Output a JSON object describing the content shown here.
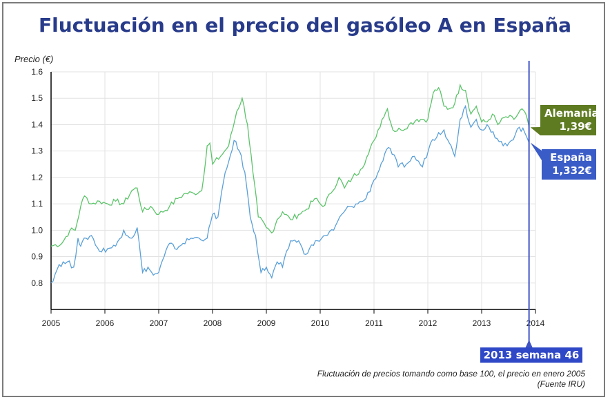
{
  "chart_data": {
    "type": "line",
    "title": "Fluctuación en el precio del gasóleo A en España",
    "ylabel": "Precio (€)",
    "xlabel": "",
    "xlim": [
      2005,
      2014
    ],
    "ylim": [
      0.7,
      1.6
    ],
    "x_ticks": [
      "2005",
      "2006",
      "2007",
      "2008",
      "2009",
      "2010",
      "2011",
      "2012",
      "2013",
      "2014"
    ],
    "y_ticks": [
      "0.8",
      "0.9",
      "1.0",
      "1.1",
      "1.2",
      "1.3",
      "1.4",
      "1.5",
      "1.6"
    ],
    "grid": true,
    "series": [
      {
        "name": "Alemania",
        "color": "#5cc46a",
        "x": [
          2005.0,
          2005.2,
          2005.35,
          2005.45,
          2005.55,
          2005.62,
          2005.75,
          2005.9,
          2006.05,
          2006.2,
          2006.35,
          2006.5,
          2006.6,
          2006.7,
          2006.85,
          2007.0,
          2007.2,
          2007.35,
          2007.5,
          2007.65,
          2007.8,
          2007.9,
          2007.95,
          2008.0,
          2008.15,
          2008.3,
          2008.45,
          2008.55,
          2008.65,
          2008.75,
          2008.85,
          2009.0,
          2009.1,
          2009.2,
          2009.3,
          2009.45,
          2009.6,
          2009.75,
          2009.9,
          2010.05,
          2010.2,
          2010.35,
          2010.45,
          2010.6,
          2010.75,
          2010.9,
          2011.0,
          2011.15,
          2011.25,
          2011.35,
          2011.5,
          2011.65,
          2011.8,
          2011.9,
          2012.0,
          2012.1,
          2012.2,
          2012.3,
          2012.4,
          2012.5,
          2012.6,
          2012.7,
          2012.8,
          2012.9,
          2013.0,
          2013.1,
          2013.2,
          2013.3,
          2013.45,
          2013.6,
          2013.75,
          2013.85,
          2013.88
        ],
        "values": [
          0.94,
          0.95,
          1.0,
          1.0,
          1.09,
          1.13,
          1.1,
          1.11,
          1.1,
          1.11,
          1.1,
          1.15,
          1.16,
          1.07,
          1.09,
          1.06,
          1.09,
          1.12,
          1.14,
          1.14,
          1.15,
          1.32,
          1.33,
          1.25,
          1.28,
          1.32,
          1.45,
          1.5,
          1.4,
          1.22,
          1.05,
          1.01,
          0.99,
          1.04,
          1.07,
          1.04,
          1.06,
          1.08,
          1.12,
          1.09,
          1.14,
          1.2,
          1.16,
          1.2,
          1.23,
          1.29,
          1.34,
          1.42,
          1.46,
          1.38,
          1.38,
          1.4,
          1.42,
          1.42,
          1.42,
          1.52,
          1.54,
          1.47,
          1.46,
          1.48,
          1.55,
          1.53,
          1.44,
          1.47,
          1.41,
          1.41,
          1.44,
          1.4,
          1.43,
          1.42,
          1.46,
          1.42,
          1.39
        ]
      },
      {
        "name": "España",
        "color": "#5aa0d8",
        "x": [
          2005.0,
          2005.15,
          2005.3,
          2005.42,
          2005.5,
          2005.55,
          2005.65,
          2005.75,
          2005.9,
          2006.05,
          2006.2,
          2006.35,
          2006.5,
          2006.6,
          2006.7,
          2006.8,
          2006.9,
          2007.0,
          2007.1,
          2007.2,
          2007.3,
          2007.45,
          2007.6,
          2007.75,
          2007.9,
          2008.0,
          2008.1,
          2008.2,
          2008.3,
          2008.4,
          2008.5,
          2008.6,
          2008.7,
          2008.8,
          2008.9,
          2009.0,
          2009.1,
          2009.2,
          2009.3,
          2009.45,
          2009.6,
          2009.7,
          2009.8,
          2009.95,
          2010.1,
          2010.25,
          2010.4,
          2010.55,
          2010.7,
          2010.85,
          2011.0,
          2011.1,
          2011.2,
          2011.3,
          2011.45,
          2011.6,
          2011.75,
          2011.9,
          2012.05,
          2012.2,
          2012.3,
          2012.4,
          2012.5,
          2012.6,
          2012.7,
          2012.8,
          2012.9,
          2013.0,
          2013.1,
          2013.25,
          2013.4,
          2013.55,
          2013.7,
          2013.8,
          2013.88
        ],
        "values": [
          0.8,
          0.87,
          0.88,
          0.86,
          0.97,
          0.94,
          0.97,
          0.98,
          0.92,
          0.93,
          0.94,
          1.0,
          0.97,
          1.01,
          0.84,
          0.86,
          0.83,
          0.84,
          0.9,
          0.95,
          0.93,
          0.95,
          0.97,
          0.97,
          0.97,
          1.06,
          1.05,
          1.18,
          1.26,
          1.34,
          1.3,
          1.22,
          1.05,
          0.98,
          0.84,
          0.86,
          0.82,
          0.88,
          0.86,
          0.96,
          0.96,
          0.91,
          0.93,
          0.96,
          0.98,
          1.0,
          1.06,
          1.09,
          1.1,
          1.12,
          1.19,
          1.23,
          1.29,
          1.31,
          1.24,
          1.25,
          1.28,
          1.24,
          1.33,
          1.37,
          1.38,
          1.33,
          1.28,
          1.42,
          1.47,
          1.39,
          1.42,
          1.38,
          1.4,
          1.35,
          1.32,
          1.34,
          1.39,
          1.37,
          1.332
        ]
      }
    ],
    "marker": {
      "x": 2013.88,
      "label": "2013 semana 46"
    },
    "callouts": [
      {
        "series": "Alemania",
        "label": "Alemania",
        "value": "1,39€"
      },
      {
        "series": "España",
        "label": "España",
        "value": "1,332€"
      }
    ],
    "footnote": [
      "Fluctuación de precios tomando como base 100, el precio en enero 2005",
      "(Fuente IRU)"
    ]
  }
}
